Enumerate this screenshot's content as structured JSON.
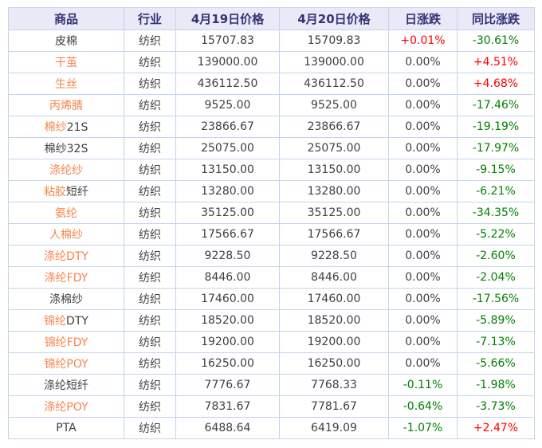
{
  "colors": {
    "header_bg": "#e9e9f7",
    "header_text": "#333377",
    "border": "#c3d4ee",
    "link_orange": "#f8834b",
    "up_red": "#ff0000",
    "down_green": "#008000",
    "neutral_text": "#404040"
  },
  "table": {
    "columns": {
      "name": "商品",
      "industry": "行业",
      "price_0419": "4月19日价格",
      "price_0420": "4月20日价格",
      "day_change": "日涨跌",
      "yoy_change": "同比涨跌"
    },
    "rows": [
      {
        "name_link": "",
        "name_plain": "皮棉",
        "industry": "纺织",
        "p19": "15707.83",
        "p20": "15709.83",
        "day": "+0.01%",
        "day_dir": "up",
        "yoy": "-30.61%",
        "yoy_dir": "down"
      },
      {
        "name_link": "干茧",
        "name_plain": "",
        "industry": "纺织",
        "p19": "139000.00",
        "p20": "139000.00",
        "day": "0.00%",
        "day_dir": "flat",
        "yoy": "+4.51%",
        "yoy_dir": "up"
      },
      {
        "name_link": "生丝",
        "name_plain": "",
        "industry": "纺织",
        "p19": "436112.50",
        "p20": "436112.50",
        "day": "0.00%",
        "day_dir": "flat",
        "yoy": "+4.68%",
        "yoy_dir": "up"
      },
      {
        "name_link": "丙烯腈",
        "name_plain": "",
        "industry": "纺织",
        "p19": "9525.00",
        "p20": "9525.00",
        "day": "0.00%",
        "day_dir": "flat",
        "yoy": "-17.46%",
        "yoy_dir": "down"
      },
      {
        "name_link": "棉纱",
        "name_plain": "21S",
        "industry": "纺织",
        "p19": "23866.67",
        "p20": "23866.67",
        "day": "0.00%",
        "day_dir": "flat",
        "yoy": "-19.19%",
        "yoy_dir": "down"
      },
      {
        "name_link": "",
        "name_plain": "棉纱32S",
        "industry": "纺织",
        "p19": "25075.00",
        "p20": "25075.00",
        "day": "0.00%",
        "day_dir": "flat",
        "yoy": "-17.97%",
        "yoy_dir": "down"
      },
      {
        "name_link": "涤纶纱",
        "name_plain": "",
        "industry": "纺织",
        "p19": "13150.00",
        "p20": "13150.00",
        "day": "0.00%",
        "day_dir": "flat",
        "yoy": "-9.15%",
        "yoy_dir": "down"
      },
      {
        "name_link": "粘胶",
        "name_plain": "短纤",
        "industry": "纺织",
        "p19": "13280.00",
        "p20": "13280.00",
        "day": "0.00%",
        "day_dir": "flat",
        "yoy": "-6.21%",
        "yoy_dir": "down"
      },
      {
        "name_link": "氨纶",
        "name_plain": "",
        "industry": "纺织",
        "p19": "35125.00",
        "p20": "35125.00",
        "day": "0.00%",
        "day_dir": "flat",
        "yoy": "-34.35%",
        "yoy_dir": "down"
      },
      {
        "name_link": "人棉纱",
        "name_plain": "",
        "industry": "纺织",
        "p19": "17566.67",
        "p20": "17566.67",
        "day": "0.00%",
        "day_dir": "flat",
        "yoy": "-5.22%",
        "yoy_dir": "down"
      },
      {
        "name_link": "涤纶DTY",
        "name_plain": "",
        "industry": "纺织",
        "p19": "9228.50",
        "p20": "9228.50",
        "day": "0.00%",
        "day_dir": "flat",
        "yoy": "-2.60%",
        "yoy_dir": "down"
      },
      {
        "name_link": "涤纶FDY",
        "name_plain": "",
        "industry": "纺织",
        "p19": "8446.00",
        "p20": "8446.00",
        "day": "0.00%",
        "day_dir": "flat",
        "yoy": "-2.04%",
        "yoy_dir": "down"
      },
      {
        "name_link": "",
        "name_plain": "涤棉纱",
        "industry": "纺织",
        "p19": "17460.00",
        "p20": "17460.00",
        "day": "0.00%",
        "day_dir": "flat",
        "yoy": "-17.56%",
        "yoy_dir": "down"
      },
      {
        "name_link": "锦纶",
        "name_plain": "DTY",
        "industry": "纺织",
        "p19": "18520.00",
        "p20": "18520.00",
        "day": "0.00%",
        "day_dir": "flat",
        "yoy": "-5.89%",
        "yoy_dir": "down"
      },
      {
        "name_link": "锦纶FDY",
        "name_plain": "",
        "industry": "纺织",
        "p19": "19200.00",
        "p20": "19200.00",
        "day": "0.00%",
        "day_dir": "flat",
        "yoy": "-7.13%",
        "yoy_dir": "down"
      },
      {
        "name_link": "锦纶POY",
        "name_plain": "",
        "industry": "纺织",
        "p19": "16250.00",
        "p20": "16250.00",
        "day": "0.00%",
        "day_dir": "flat",
        "yoy": "-5.66%",
        "yoy_dir": "down"
      },
      {
        "name_link": "",
        "name_plain": "涤纶短纤",
        "industry": "纺织",
        "p19": "7776.67",
        "p20": "7768.33",
        "day": "-0.11%",
        "day_dir": "down",
        "yoy": "-1.98%",
        "yoy_dir": "down"
      },
      {
        "name_link": "涤纶POY",
        "name_plain": "",
        "industry": "纺织",
        "p19": "7831.67",
        "p20": "7781.67",
        "day": "-0.64%",
        "day_dir": "down",
        "yoy": "-3.73%",
        "yoy_dir": "down"
      },
      {
        "name_link": "",
        "name_plain": "PTA",
        "industry": "纺织",
        "p19": "6488.64",
        "p20": "6419.09",
        "day": "-1.07%",
        "day_dir": "down",
        "yoy": "+2.47%",
        "yoy_dir": "up"
      }
    ]
  }
}
